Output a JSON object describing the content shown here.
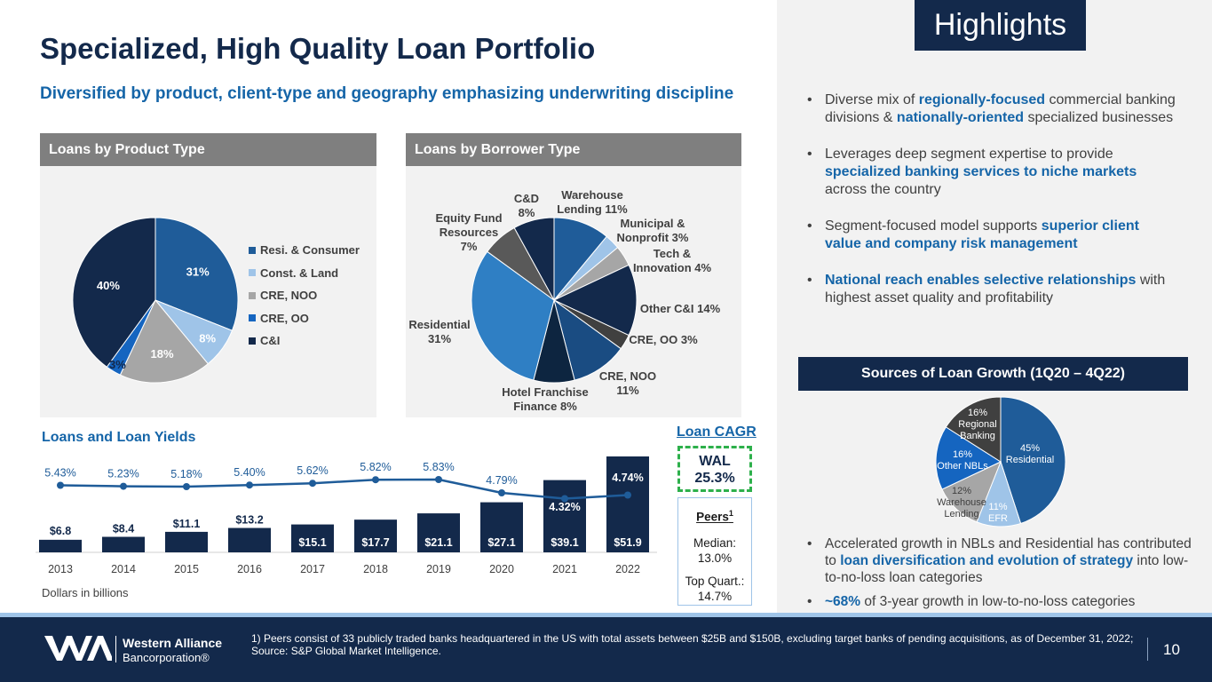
{
  "header": {
    "title": "Specialized, High Quality Loan Portfolio",
    "subtitle": "Diversified by product, client-type and geography emphasizing underwriting discipline",
    "highlights": "Highlights"
  },
  "product_panel": {
    "title": "Loans by Product Type",
    "legend": [
      {
        "label": "Resi. & Consumer",
        "color": "#1f5c99"
      },
      {
        "label": "Const. & Land",
        "color": "#9fc4e8"
      },
      {
        "label": "CRE, NOO",
        "color": "#a6a6a6"
      },
      {
        "label": "CRE, OO",
        "color": "#1565c0"
      },
      {
        "label": "C&I",
        "color": "#13294b"
      }
    ],
    "labels": [
      "31%",
      "8%",
      "18%",
      "3%",
      "40%"
    ]
  },
  "borrower_panel": {
    "title": "Loans by Borrower Type",
    "labels": {
      "warehouse": [
        "Warehouse",
        "Lending 11%"
      ],
      "municipal": [
        "Municipal &",
        "Nonprofit 3%"
      ],
      "tech": [
        "Tech &",
        "Innovation 4%"
      ],
      "other_ci": "Other C&I 14%",
      "cre_oo": "CRE, OO 3%",
      "cre_noo": [
        "CRE, NOO",
        "11%"
      ],
      "hotel": [
        "Hotel Franchise",
        "Finance 8%"
      ],
      "residential": [
        "Residential",
        "31%"
      ],
      "equity": [
        "Equity Fund",
        "Resources",
        "7%"
      ],
      "cd": [
        "C&D",
        "8%"
      ]
    }
  },
  "loans_yields": {
    "title": "Loans and Loan Yields",
    "units_note": "Dollars in billions"
  },
  "cagr": {
    "title": "Loan CAGR",
    "wal_label": "WAL",
    "wal_value": "25.3%",
    "peers_title": "Peers",
    "peers_sup": "1",
    "median_label": "Median:",
    "median_value": "13.0%",
    "topq_label": "Top Quart.:",
    "topq_value": "14.7%"
  },
  "bullets": [
    {
      "parts": [
        [
          "Diverse mix of ",
          false
        ],
        [
          "regionally-focused",
          true
        ],
        [
          " commercial banking divisions & ",
          false
        ],
        [
          "nationally-oriented",
          true
        ],
        [
          " specialized businesses",
          false
        ]
      ]
    },
    {
      "parts": [
        [
          "Leverages deep segment expertise to provide ",
          false
        ],
        [
          "specialized banking services to niche markets",
          true
        ],
        [
          " across the country",
          false
        ]
      ]
    },
    {
      "parts": [
        [
          "Segment-focused model supports ",
          false
        ],
        [
          "superior client value and company risk management",
          true
        ]
      ]
    },
    {
      "parts": [
        [
          "National reach enables selective relationships",
          true
        ],
        [
          " with highest asset quality and profitability",
          false
        ]
      ]
    }
  ],
  "sources": {
    "title": "Sources of Loan Growth (1Q20 – 4Q22)",
    "labels": {
      "residential": [
        "45%",
        "Residential"
      ],
      "efr": [
        "11%",
        "EFR"
      ],
      "warehouse": [
        "12%",
        "Warehouse",
        "Lending"
      ],
      "other_nbls": [
        "16%",
        "Other NBLs"
      ],
      "regional": [
        "16%",
        "Regional",
        "Banking"
      ]
    }
  },
  "bullets2": [
    {
      "parts": [
        [
          "Accelerated growth in NBLs and Residential has contributed to ",
          false
        ],
        [
          "loan diversification and evolution of strategy",
          true
        ],
        [
          " into low-to-no-loss loan categories",
          false
        ]
      ]
    },
    {
      "parts": [
        [
          "~68%",
          true
        ],
        [
          " of 3-year growth in low-to-no-loss categories",
          false
        ]
      ]
    }
  ],
  "footer": {
    "company_line1": "Western Alliance",
    "company_line2": "Bancorporation®",
    "footnote": "1)  Peers consist of 33 publicly traded banks headquartered in the US with total assets between $25B and $150B, excluding target banks of pending acquisitions, as of December 31, 2022; Source: S&P Global Market Intelligence.",
    "page": "10"
  },
  "chart_data": [
    {
      "type": "pie",
      "title": "Loans by Product Type",
      "categories": [
        "Resi. & Consumer",
        "Const. & Land",
        "CRE, NOO",
        "CRE, OO",
        "C&I"
      ],
      "values": [
        31,
        8,
        18,
        3,
        40
      ],
      "colors": [
        "#1f5c99",
        "#9fc4e8",
        "#a6a6a6",
        "#1565c0",
        "#13294b"
      ],
      "legend": "right"
    },
    {
      "type": "pie",
      "title": "Loans by Borrower Type",
      "categories": [
        "Warehouse Lending",
        "Municipal & Nonprofit",
        "Tech & Innovation",
        "Other C&I",
        "CRE, OO",
        "CRE, NOO",
        "Hotel Franchise Finance",
        "Residential",
        "Equity Fund Resources",
        "C&D"
      ],
      "values": [
        11,
        3,
        4,
        14,
        3,
        11,
        8,
        31,
        7,
        8
      ],
      "colors": [
        "#1f5c99",
        "#9fc4e8",
        "#a6a6a6",
        "#13294b",
        "#404040",
        "#1a4c82",
        "#0d2540",
        "#2f7fc4",
        "#595959",
        "#13294b"
      ]
    },
    {
      "type": "bar",
      "title": "Loans and Loan Yields",
      "categories": [
        "2013",
        "2014",
        "2015",
        "2016",
        "2017",
        "2018",
        "2019",
        "2020",
        "2021",
        "2022"
      ],
      "series": [
        {
          "values": [
            6.8,
            8.4,
            11.1,
            13.2,
            15.1,
            17.7,
            21.1,
            27.1,
            39.1,
            51.9
          ],
          "labels": [
            "$6.8",
            "$8.4",
            "$11.1",
            "$13.2",
            "$15.1",
            "$17.7",
            "$21.1",
            "$27.1",
            "$39.1",
            "$51.9"
          ]
        },
        {
          "type": "line",
          "values": [
            5.43,
            5.23,
            5.18,
            5.4,
            5.62,
            5.82,
            5.83,
            4.79,
            4.32,
            4.74
          ],
          "labels": [
            "5.43%",
            "5.23%",
            "5.18%",
            "5.40%",
            "5.62%",
            "5.82%",
            "5.83%",
            "4.79%",
            "4.32%",
            "4.74%"
          ]
        }
      ],
      "bar_color": "#13294b",
      "line_color": "#1f5c99"
    },
    {
      "type": "pie",
      "title": "Sources of Loan Growth (1Q20 – 4Q22)",
      "categories": [
        "Residential",
        "EFR",
        "Warehouse Lending",
        "Other NBLs",
        "Regional Banking"
      ],
      "values": [
        45,
        11,
        12,
        16,
        16
      ],
      "colors": [
        "#1f5c99",
        "#9fc4e8",
        "#a6a6a6",
        "#1565c0",
        "#404040"
      ]
    }
  ]
}
